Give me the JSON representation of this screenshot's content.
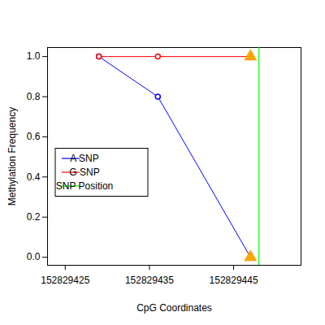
{
  "chart_data": {
    "type": "line",
    "x_label": "CpG Coordinates",
    "y_label": "Methylation Frequency",
    "x": [
      152829429,
      152829436,
      152829447
    ],
    "series": [
      {
        "name": "A SNP",
        "color": "#0000FF",
        "values": [
          1.0,
          0.8,
          0.0
        ],
        "marker": "circle"
      },
      {
        "name": "G SNP",
        "color": "#FF0000",
        "values": [
          1.0,
          1.0,
          1.0
        ],
        "marker": "circle"
      }
    ],
    "snp_position": {
      "x": 152829448,
      "label": "SNP Position",
      "color": "#00FF00"
    },
    "xlim": [
      152829422.9,
      152829453
    ],
    "ylim": [
      -0.04,
      1.045
    ],
    "xticks": [
      152829425,
      152829435,
      152829445
    ],
    "yticks": [
      {
        "value": 0,
        "label": "0.0"
      },
      0.2,
      0.4,
      0.6,
      0.8,
      {
        "value": 1,
        "label": "1.0"
      }
    ],
    "grid": false,
    "legend": "left"
  }
}
